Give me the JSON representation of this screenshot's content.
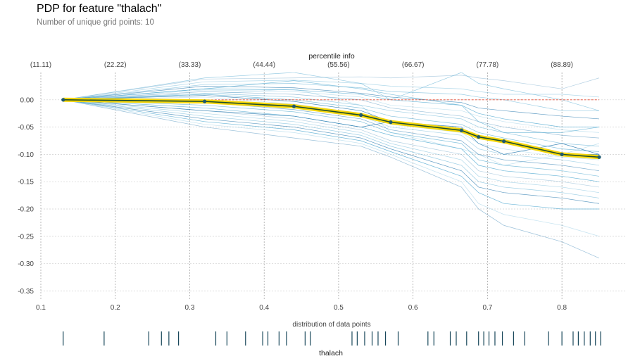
{
  "title": "PDP for feature \"thalach\"",
  "subtitle": "Number of unique grid points: 10",
  "chart_data": {
    "type": "line",
    "xlabel": "thalach",
    "top_axis_label": "percentile info",
    "dist_label": "distribution of data points",
    "xlim": [
      0.1,
      0.885
    ],
    "ylim": [
      -0.365,
      0.05
    ],
    "x_ticks": [
      0.1,
      0.2,
      0.3,
      0.4,
      0.5,
      0.6,
      0.7,
      0.8
    ],
    "y_ticks": [
      0.0,
      -0.05,
      -0.1,
      -0.15,
      -0.2,
      -0.25,
      -0.3,
      -0.35
    ],
    "percentile_ticks": [
      {
        "x": 0.1,
        "label": "(11.11)"
      },
      {
        "x": 0.2,
        "label": "(22.22)"
      },
      {
        "x": 0.3,
        "label": "(33.33)"
      },
      {
        "x": 0.4,
        "label": "(44.44)"
      },
      {
        "x": 0.5,
        "label": "(55.56)"
      },
      {
        "x": 0.6,
        "label": "(66.67)"
      },
      {
        "x": 0.7,
        "label": "(77.78)"
      },
      {
        "x": 0.8,
        "label": "(88.89)"
      }
    ],
    "pdp_line": {
      "x": [
        0.13,
        0.32,
        0.44,
        0.53,
        0.57,
        0.665,
        0.688,
        0.722,
        0.8,
        0.85
      ],
      "y": [
        0.0,
        -0.003,
        -0.012,
        -0.028,
        -0.041,
        -0.056,
        -0.068,
        -0.076,
        -0.1,
        -0.105
      ]
    },
    "ice_lines": [
      {
        "y": [
          0,
          0.038,
          0.04,
          0.042,
          0.04,
          0.045,
          0.04,
          0.035,
          0.02,
          0.04
        ]
      },
      {
        "y": [
          0,
          0.033,
          0.036,
          0.03,
          0.025,
          0.02,
          0.015,
          0.01,
          0.01,
          0.005
        ]
      },
      {
        "y": [
          0,
          0.028,
          0.03,
          0.022,
          0.015,
          0.01,
          0.005,
          0.0,
          -0.02,
          -0.02
        ]
      },
      {
        "y": [
          0,
          0.025,
          0.022,
          0.012,
          0.005,
          -0.005,
          -0.015,
          -0.02,
          -0.03,
          -0.035
        ]
      },
      {
        "y": [
          0,
          0.02,
          0.018,
          0.01,
          0.0,
          -0.01,
          -0.025,
          -0.035,
          -0.05,
          -0.05
        ]
      },
      {
        "y": [
          0,
          0.018,
          0.015,
          0.005,
          -0.01,
          -0.02,
          -0.03,
          -0.04,
          -0.055,
          -0.06
        ]
      },
      {
        "y": [
          0,
          0.015,
          0.01,
          0.0,
          -0.015,
          -0.03,
          -0.04,
          -0.05,
          -0.065,
          -0.07
        ]
      },
      {
        "y": [
          0,
          0.012,
          0.005,
          -0.01,
          -0.02,
          -0.035,
          -0.05,
          -0.06,
          -0.08,
          -0.085
        ]
      },
      {
        "y": [
          0,
          0.01,
          0.0,
          -0.015,
          -0.03,
          -0.045,
          -0.06,
          -0.07,
          -0.09,
          -0.095
        ]
      },
      {
        "y": [
          0,
          0.008,
          -0.003,
          -0.02,
          -0.04,
          -0.055,
          -0.065,
          -0.075,
          -0.1,
          -0.1
        ]
      },
      {
        "y": [
          0,
          0.005,
          -0.008,
          -0.025,
          -0.045,
          -0.06,
          -0.08,
          -0.09,
          -0.105,
          -0.11
        ]
      },
      {
        "y": [
          0,
          0.0,
          -0.012,
          -0.03,
          -0.05,
          -0.065,
          -0.09,
          -0.1,
          -0.11,
          -0.12
        ]
      },
      {
        "y": [
          0,
          -0.005,
          -0.018,
          -0.035,
          -0.055,
          -0.075,
          -0.1,
          -0.11,
          -0.12,
          -0.13
        ]
      },
      {
        "y": [
          0,
          -0.01,
          -0.022,
          -0.04,
          -0.06,
          -0.08,
          -0.11,
          -0.12,
          -0.13,
          -0.14
        ]
      },
      {
        "y": [
          0,
          -0.015,
          -0.03,
          -0.05,
          -0.065,
          -0.09,
          -0.12,
          -0.13,
          -0.14,
          -0.15
        ]
      },
      {
        "y": [
          0,
          -0.02,
          -0.035,
          -0.055,
          -0.075,
          -0.1,
          -0.13,
          -0.14,
          -0.15,
          -0.16
        ]
      },
      {
        "y": [
          0,
          -0.025,
          -0.04,
          -0.06,
          -0.08,
          -0.11,
          -0.14,
          -0.15,
          -0.16,
          -0.17
        ]
      },
      {
        "y": [
          0,
          -0.03,
          -0.045,
          -0.065,
          -0.085,
          -0.12,
          -0.15,
          -0.16,
          -0.17,
          -0.18
        ]
      },
      {
        "y": [
          0,
          -0.035,
          -0.05,
          -0.07,
          -0.09,
          -0.13,
          -0.16,
          -0.17,
          -0.18,
          -0.19
        ]
      },
      {
        "y": [
          0,
          -0.04,
          -0.055,
          -0.075,
          -0.095,
          -0.14,
          -0.17,
          -0.19,
          -0.2,
          -0.2
        ]
      },
      {
        "y": [
          0,
          -0.045,
          -0.06,
          -0.08,
          -0.1,
          -0.15,
          -0.19,
          -0.21,
          -0.23,
          -0.25
        ]
      },
      {
        "y": [
          0,
          -0.05,
          -0.07,
          -0.085,
          -0.105,
          -0.16,
          -0.2,
          -0.23,
          -0.26,
          -0.29
        ]
      },
      {
        "y": [
          0,
          0.04,
          0.05,
          0.03,
          0.0,
          0.05,
          0.03,
          0.02,
          0.0,
          -0.02
        ]
      },
      {
        "y": [
          0,
          0.02,
          0.035,
          0.02,
          0.01,
          -0.01,
          -0.04,
          -0.06,
          -0.06,
          -0.05
        ]
      },
      {
        "y": [
          0,
          -0.02,
          -0.03,
          -0.05,
          -0.04,
          -0.05,
          -0.08,
          -0.1,
          -0.08,
          -0.1
        ]
      },
      {
        "y": [
          0,
          0.01,
          0.02,
          -0.01,
          -0.06,
          -0.09,
          -0.1,
          -0.12,
          -0.1,
          -0.08
        ]
      }
    ],
    "distribution_x": [
      0.13,
      0.185,
      0.245,
      0.262,
      0.272,
      0.285,
      0.335,
      0.35,
      0.375,
      0.398,
      0.405,
      0.42,
      0.43,
      0.455,
      0.462,
      0.518,
      0.525,
      0.535,
      0.545,
      0.553,
      0.563,
      0.58,
      0.62,
      0.628,
      0.65,
      0.658,
      0.672,
      0.688,
      0.695,
      0.702,
      0.71,
      0.72,
      0.735,
      0.75,
      0.782,
      0.8,
      0.815,
      0.822,
      0.83,
      0.838,
      0.845,
      0.852
    ],
    "colors": {
      "ice": "#5aaed3",
      "pdp_outer": "#f5d60a",
      "pdp_inner": "#1b4d2e",
      "marker": "#1e5a70",
      "baseline": "#e34a33",
      "dist": "#18475a",
      "grid": "#cfcfcf"
    }
  }
}
